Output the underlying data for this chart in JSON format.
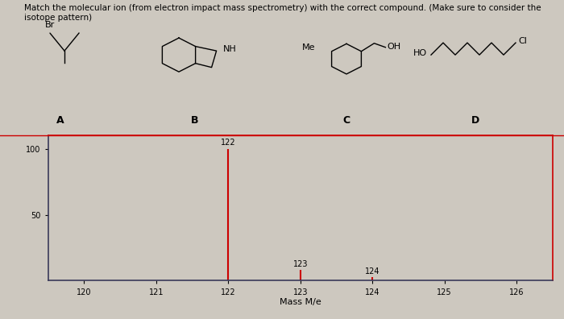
{
  "title_line1": "Match the molecular ion (from electron impact mass spectrometry) with the correct compound. (Make sure to consider the",
  "title_line2": "isotope pattern)",
  "xlabel": "Mass M/e",
  "xlim": [
    119.5,
    126.5
  ],
  "ylim": [
    0,
    110
  ],
  "xticks": [
    120,
    121,
    122,
    123,
    124,
    125,
    126
  ],
  "yticks": [
    50,
    100
  ],
  "peaks": [
    {
      "mz": 122,
      "height": 100,
      "color": "#cc0000",
      "label": "122"
    },
    {
      "mz": 123,
      "height": 8,
      "color": "#cc0000",
      "label": "123"
    },
    {
      "mz": 124,
      "height": 3,
      "color": "#cc0000",
      "label": "124"
    }
  ],
  "bg_color": "#cdc8bf",
  "spine_top_right": "#cc0000",
  "spine_left_bottom": "#3a3a5a",
  "peak_label_fontsize": 7,
  "tick_fontsize": 7,
  "axis_label_fontsize": 8,
  "title_fontsize": 7.5,
  "struct_label_fontsize": 9
}
